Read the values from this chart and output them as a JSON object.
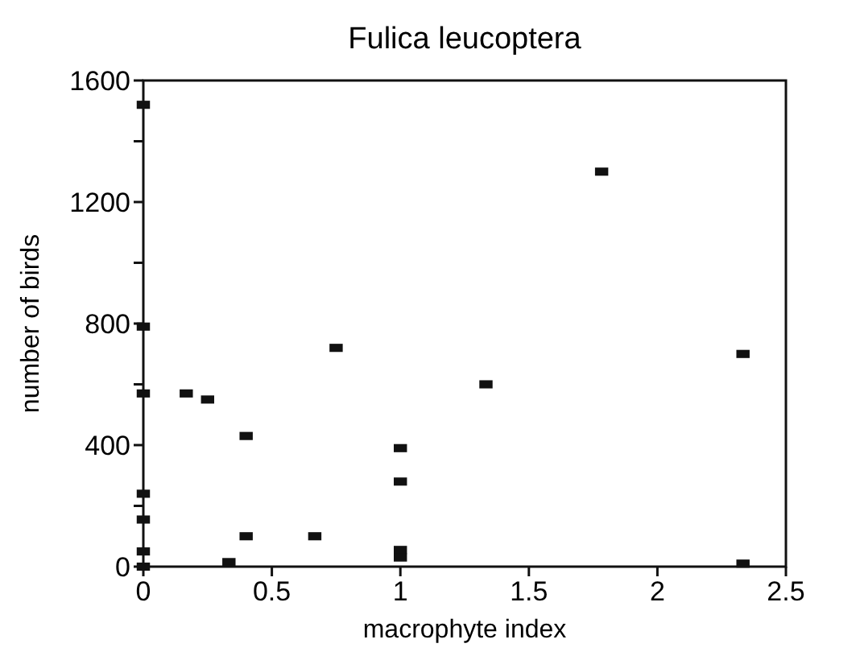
{
  "chart_data": {
    "type": "scatter",
    "title": "Fulica leucoptera",
    "xlabel": "macrophyte index",
    "ylabel": "number of birds",
    "marker": "square",
    "grid": false,
    "x": [
      0,
      0,
      0,
      0,
      0,
      0,
      0,
      0.167,
      0.25,
      0.4,
      0.4,
      0.333,
      0.667,
      0.75,
      1,
      1,
      1,
      1,
      1.333,
      1.783,
      2.333,
      2.333
    ],
    "series": [
      {
        "color": "#111111",
        "values": [
          1520,
          790,
          570,
          240,
          155,
          50,
          0,
          570,
          550,
          430,
          100,
          15,
          100,
          720,
          390,
          280,
          55,
          30,
          600,
          1300,
          700,
          10
        ]
      }
    ],
    "xlim": [
      0,
      2.5
    ],
    "xticks": [
      0,
      0.5,
      1,
      1.5,
      2,
      2.5
    ],
    "ylim": [
      0,
      1600
    ],
    "yticks": [
      0,
      {
        "value": 200,
        "label": null
      },
      400,
      {
        "value": 600,
        "label": null
      },
      800,
      {
        "value": 1000,
        "label": null
      },
      1200,
      {
        "value": 1400,
        "label": null
      },
      1600
    ]
  }
}
